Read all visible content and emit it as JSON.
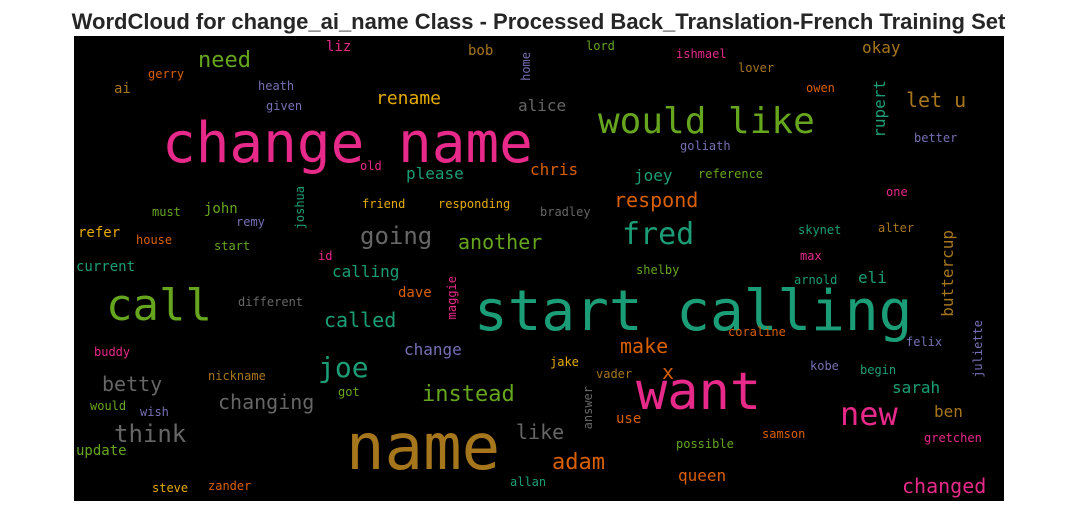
{
  "chart_data": {
    "type": "wordcloud",
    "title": "WordCloud for change_ai_name Class - Processed Back_Translation-French Training Set",
    "background": "#000000",
    "words": [
      {
        "text": "start calling",
        "weight": 1.0,
        "color": "#1b9e77"
      },
      {
        "text": "change name",
        "weight": 0.98,
        "color": "#e7298a"
      },
      {
        "text": "name",
        "weight": 0.96,
        "color": "#a6761d"
      },
      {
        "text": "want",
        "weight": 0.86,
        "color": "#e7298a"
      },
      {
        "text": "call",
        "weight": 0.72,
        "color": "#66a61e"
      },
      {
        "text": "would like",
        "weight": 0.62,
        "color": "#66a61e"
      },
      {
        "text": "new",
        "weight": 0.5,
        "color": "#e7298a"
      },
      {
        "text": "fred",
        "weight": 0.48,
        "color": "#1b9e77"
      },
      {
        "text": "joe",
        "weight": 0.44,
        "color": "#1b9e77"
      },
      {
        "text": "think",
        "weight": 0.4,
        "color": "#666666"
      },
      {
        "text": "going",
        "weight": 0.4,
        "color": "#666666"
      },
      {
        "text": "adam",
        "weight": 0.38,
        "color": "#d95f02"
      },
      {
        "text": "instead",
        "weight": 0.38,
        "color": "#66a61e"
      },
      {
        "text": "need",
        "weight": 0.38,
        "color": "#66a61e"
      },
      {
        "text": "changing",
        "weight": 0.37,
        "color": "#666666"
      },
      {
        "text": "betty",
        "weight": 0.36,
        "color": "#666666"
      },
      {
        "text": "x",
        "weight": 0.36,
        "color": "#d95f02"
      },
      {
        "text": "make",
        "weight": 0.36,
        "color": "#d95f02"
      },
      {
        "text": "like",
        "weight": 0.35,
        "color": "#666666"
      },
      {
        "text": "changed",
        "weight": 0.35,
        "color": "#e7298a"
      },
      {
        "text": "respond",
        "weight": 0.35,
        "color": "#d95f02"
      },
      {
        "text": "another",
        "weight": 0.34,
        "color": "#66a61e"
      },
      {
        "text": "called",
        "weight": 0.33,
        "color": "#1b9e77"
      },
      {
        "text": "rename",
        "weight": 0.32,
        "color": "#e6ab02"
      },
      {
        "text": "let u",
        "weight": 0.33,
        "color": "#a6761d"
      },
      {
        "text": "buttercup",
        "weight": 0.3,
        "color": "#a6761d"
      },
      {
        "text": "rupert",
        "weight": 0.28,
        "color": "#1b9e77"
      },
      {
        "text": "calling",
        "weight": 0.28,
        "color": "#1b9e77"
      },
      {
        "text": "chris",
        "weight": 0.28,
        "color": "#d95f02"
      },
      {
        "text": "okay",
        "weight": 0.28,
        "color": "#a6761d"
      },
      {
        "text": "change",
        "weight": 0.27,
        "color": "#7570b3"
      },
      {
        "text": "sarah",
        "weight": 0.27,
        "color": "#1b9e77"
      },
      {
        "text": "ben",
        "weight": 0.27,
        "color": "#a6761d"
      },
      {
        "text": "eli",
        "weight": 0.27,
        "color": "#1b9e77"
      },
      {
        "text": "joey",
        "weight": 0.26,
        "color": "#1b9e77"
      },
      {
        "text": "please",
        "weight": 0.26,
        "color": "#1b9e77"
      },
      {
        "text": "alice",
        "weight": 0.26,
        "color": "#666666"
      },
      {
        "text": "queen",
        "weight": 0.26,
        "color": "#d95f02"
      },
      {
        "text": "dave",
        "weight": 0.25,
        "color": "#d95f02"
      },
      {
        "text": "use",
        "weight": 0.25,
        "color": "#d95f02"
      },
      {
        "text": "john",
        "weight": 0.24,
        "color": "#66a61e"
      },
      {
        "text": "current",
        "weight": 0.24,
        "color": "#1b9e77"
      },
      {
        "text": "refer",
        "weight": 0.24,
        "color": "#e6ab02"
      },
      {
        "text": "update",
        "weight": 0.24,
        "color": "#66a61e"
      },
      {
        "text": "ai",
        "weight": 0.24,
        "color": "#a6761d"
      },
      {
        "text": "liz",
        "weight": 0.24,
        "color": "#e7298a"
      },
      {
        "text": "bob",
        "weight": 0.24,
        "color": "#a6761d"
      },
      {
        "text": "heath",
        "weight": 0.2,
        "color": "#7570b3"
      },
      {
        "text": "given",
        "weight": 0.2,
        "color": "#7570b3"
      },
      {
        "text": "gerry",
        "weight": 0.2,
        "color": "#d95f02"
      },
      {
        "text": "home",
        "weight": 0.2,
        "color": "#7570b3"
      },
      {
        "text": "lord",
        "weight": 0.2,
        "color": "#66a61e"
      },
      {
        "text": "ishmael",
        "weight": 0.2,
        "color": "#e7298a"
      },
      {
        "text": "lover",
        "weight": 0.2,
        "color": "#a6761d"
      },
      {
        "text": "owen",
        "weight": 0.2,
        "color": "#d95f02"
      },
      {
        "text": "better",
        "weight": 0.2,
        "color": "#7570b3"
      },
      {
        "text": "goliath",
        "weight": 0.2,
        "color": "#7570b3"
      },
      {
        "text": "reference",
        "weight": 0.2,
        "color": "#66a61e"
      },
      {
        "text": "old",
        "weight": 0.2,
        "color": "#e7298a"
      },
      {
        "text": "one",
        "weight": 0.2,
        "color": "#e7298a"
      },
      {
        "text": "must",
        "weight": 0.2,
        "color": "#66a61e"
      },
      {
        "text": "joshua",
        "weight": 0.2,
        "color": "#1b9e77"
      },
      {
        "text": "friend",
        "weight": 0.2,
        "color": "#e6ab02"
      },
      {
        "text": "responding",
        "weight": 0.2,
        "color": "#e6ab02"
      },
      {
        "text": "bradley",
        "weight": 0.2,
        "color": "#666666"
      },
      {
        "text": "remy",
        "weight": 0.2,
        "color": "#7570b3"
      },
      {
        "text": "house",
        "weight": 0.2,
        "color": "#d95f02"
      },
      {
        "text": "start",
        "weight": 0.2,
        "color": "#66a61e"
      },
      {
        "text": "skynet",
        "weight": 0.2,
        "color": "#1b9e77"
      },
      {
        "text": "alter",
        "weight": 0.2,
        "color": "#a6761d"
      },
      {
        "text": "id",
        "weight": 0.2,
        "color": "#e7298a"
      },
      {
        "text": "max",
        "weight": 0.2,
        "color": "#e7298a"
      },
      {
        "text": "shelby",
        "weight": 0.2,
        "color": "#66a61e"
      },
      {
        "text": "arnold",
        "weight": 0.2,
        "color": "#1b9e77"
      },
      {
        "text": "different",
        "weight": 0.2,
        "color": "#666666"
      },
      {
        "text": "maggie",
        "weight": 0.2,
        "color": "#e7298a"
      },
      {
        "text": "coraline",
        "weight": 0.2,
        "color": "#d95f02"
      },
      {
        "text": "felix",
        "weight": 0.2,
        "color": "#7570b3"
      },
      {
        "text": "juliette",
        "weight": 0.2,
        "color": "#7570b3"
      },
      {
        "text": "buddy",
        "weight": 0.2,
        "color": "#e7298a"
      },
      {
        "text": "jake",
        "weight": 0.2,
        "color": "#e6ab02"
      },
      {
        "text": "kobe",
        "weight": 0.2,
        "color": "#7570b3"
      },
      {
        "text": "begin",
        "weight": 0.2,
        "color": "#1b9e77"
      },
      {
        "text": "nickname",
        "weight": 0.2,
        "color": "#a6761d"
      },
      {
        "text": "got",
        "weight": 0.2,
        "color": "#66a61e"
      },
      {
        "text": "vader",
        "weight": 0.2,
        "color": "#a6761d"
      },
      {
        "text": "would",
        "weight": 0.2,
        "color": "#66a61e"
      },
      {
        "text": "wish",
        "weight": 0.2,
        "color": "#7570b3"
      },
      {
        "text": "answer",
        "weight": 0.2,
        "color": "#666666"
      },
      {
        "text": "samson",
        "weight": 0.2,
        "color": "#d95f02"
      },
      {
        "text": "gretchen",
        "weight": 0.2,
        "color": "#e7298a"
      },
      {
        "text": "possible",
        "weight": 0.2,
        "color": "#66a61e"
      },
      {
        "text": "steve",
        "weight": 0.2,
        "color": "#e6ab02"
      },
      {
        "text": "zander",
        "weight": 0.2,
        "color": "#d95f02"
      },
      {
        "text": "allan",
        "weight": 0.2,
        "color": "#1b9e77"
      }
    ]
  }
}
